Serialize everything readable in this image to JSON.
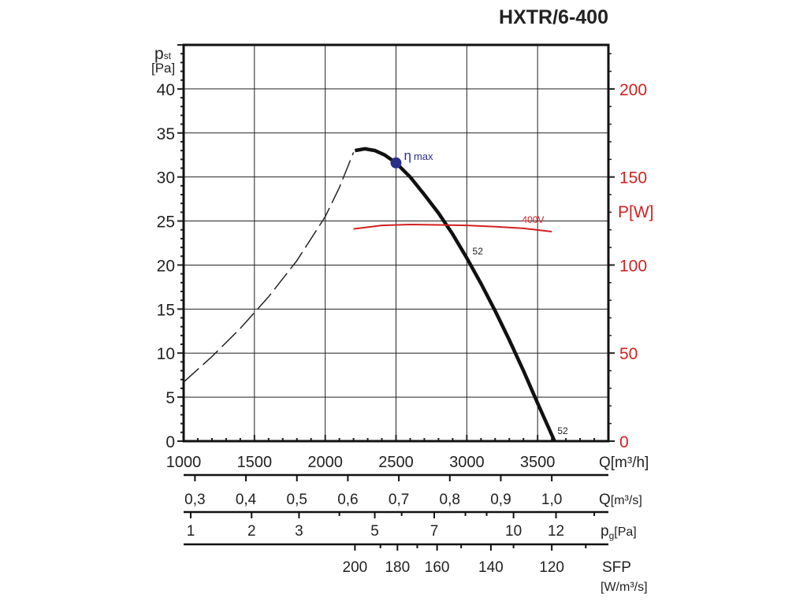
{
  "chart_data": {
    "type": "line",
    "title": "HXTR/6-400",
    "xlabel": "Q[m³/h]",
    "ylabel_main": "p",
    "ylabel_sub": "st",
    "ylabel_unit": "[Pa]",
    "y2label": "P[W]",
    "xlim": [
      1000,
      4000
    ],
    "ylim": [
      0,
      45
    ],
    "y2lim": [
      0,
      225
    ],
    "grid": true,
    "x_ticks": [
      1000,
      1500,
      2000,
      2500,
      3000,
      3500
    ],
    "y_ticks": [
      0,
      5,
      10,
      15,
      20,
      25,
      30,
      35,
      40
    ],
    "y2_ticks": [
      0,
      50,
      100,
      150,
      200
    ],
    "series": [
      {
        "name": "pressure-dashed",
        "style": "dashed",
        "color": "#222222",
        "x": [
          1000,
          1200,
          1400,
          1600,
          1800,
          2000,
          2100,
          2200
        ],
        "y": [
          6.7,
          9.6,
          12.8,
          16.4,
          20.5,
          25.5,
          28.8,
          32.8
        ]
      },
      {
        "name": "pressure-52",
        "label": "52",
        "style": "solid",
        "color": "#111111",
        "x": [
          2210,
          2280,
          2350,
          2420,
          2500,
          2600,
          2700,
          2800,
          2900,
          3000,
          3100,
          3200,
          3300,
          3400,
          3500,
          3620
        ],
        "y": [
          33.0,
          33.2,
          33.0,
          32.5,
          31.6,
          30.0,
          28.0,
          25.9,
          23.5,
          20.8,
          17.9,
          14.8,
          11.5,
          8.0,
          4.3,
          0
        ]
      },
      {
        "name": "power-400V",
        "label": "400V",
        "style": "solid",
        "color": "#d42020",
        "axis": "y2",
        "x": [
          2200,
          2400,
          2600,
          2800,
          3000,
          3200,
          3400,
          3600
        ],
        "y": [
          120.5,
          122.5,
          123,
          122.8,
          122.5,
          121.8,
          120.8,
          119
        ]
      }
    ],
    "annotations": [
      {
        "text": "η",
        "sub": "max",
        "x": 2500,
        "y": 31.6,
        "color": "#2a2f8a"
      },
      {
        "text": "52",
        "x": 3040,
        "y": 21.2
      },
      {
        "text": "52",
        "x": 3640,
        "y": 0.8
      }
    ],
    "secondary_scales": [
      {
        "label": "Q",
        "unit": "[m³/s]",
        "ticks": [
          {
            "q": 1080,
            "label": "0,3"
          },
          {
            "q": 1440,
            "label": "0,4"
          },
          {
            "q": 1800,
            "label": "0,5"
          },
          {
            "q": 2160,
            "label": "0,6"
          },
          {
            "q": 2520,
            "label": "0,7"
          },
          {
            "q": 2880,
            "label": "0,8"
          },
          {
            "q": 3240,
            "label": "0,9"
          },
          {
            "q": 3600,
            "label": "1,0"
          }
        ]
      },
      {
        "label": "p",
        "sub": "g",
        "unit": "[Pa]",
        "ticks": [
          {
            "q": 1050,
            "label": "1"
          },
          {
            "q": 1480,
            "label": "2"
          },
          {
            "q": 1815,
            "label": "3"
          },
          {
            "q": 2100,
            "label": ""
          },
          {
            "q": 2350,
            "label": "5"
          },
          {
            "q": 2540,
            "label": ""
          },
          {
            "q": 2770,
            "label": "7"
          },
          {
            "q": 2990,
            "label": ""
          },
          {
            "q": 3140,
            "label": ""
          },
          {
            "q": 3330,
            "label": "10"
          },
          {
            "q": 3630,
            "label": "12"
          },
          {
            "q": 3900,
            "label": ""
          }
        ]
      },
      {
        "label": "SFP",
        "unit": "[W/m³/s]",
        "ticks": [
          {
            "q": 2210,
            "label": "200"
          },
          {
            "q": 2390,
            "label": ""
          },
          {
            "q": 2510,
            "label": "180"
          },
          {
            "q": 2650,
            "label": ""
          },
          {
            "q": 2790,
            "label": "160"
          },
          {
            "q": 2960,
            "label": ""
          },
          {
            "q": 3170,
            "label": "140"
          },
          {
            "q": 3330,
            "label": ""
          },
          {
            "q": 3600,
            "label": "120"
          },
          {
            "q": 3840,
            "label": ""
          }
        ]
      }
    ]
  }
}
